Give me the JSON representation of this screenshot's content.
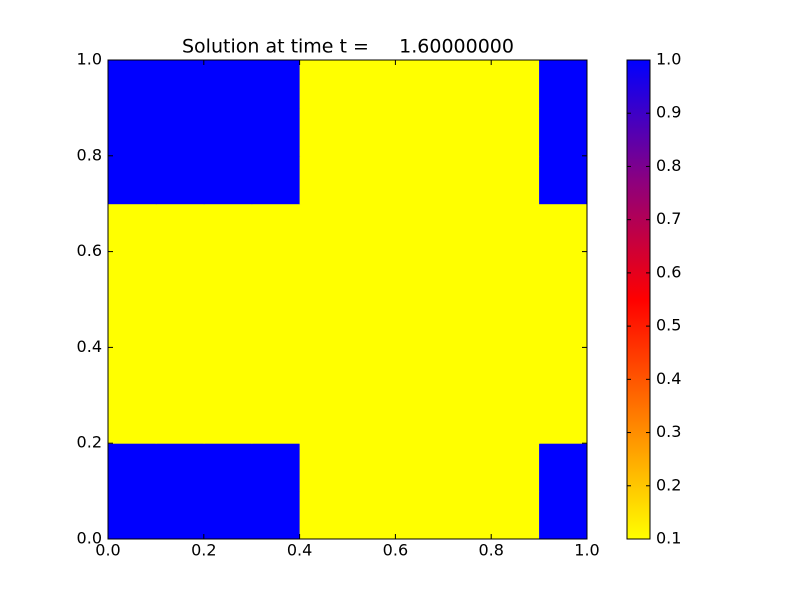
{
  "chart_data": {
    "type": "heatmap",
    "title": "Solution at time t =     1.60000000",
    "xbins": [
      0,
      0.1,
      0.2,
      0.3,
      0.4,
      0.5,
      0.6,
      0.7,
      0.8,
      0.9,
      1
    ],
    "ybins": [
      0,
      0.1,
      0.2,
      0.3,
      0.4,
      0.5,
      0.6,
      0.7,
      0.8,
      0.9,
      1
    ],
    "z": [
      [
        1,
        1,
        1,
        1,
        0.1,
        0.1,
        0.1,
        0.1,
        0.1,
        1
      ],
      [
        1,
        1,
        1,
        1,
        0.1,
        0.1,
        0.1,
        0.1,
        0.1,
        1
      ],
      [
        0.1,
        0.1,
        0.1,
        0.1,
        0.1,
        0.1,
        0.1,
        0.1,
        0.1,
        0.1
      ],
      [
        0.1,
        0.1,
        0.1,
        0.1,
        0.1,
        0.1,
        0.1,
        0.1,
        0.1,
        0.1
      ],
      [
        0.1,
        0.1,
        0.1,
        0.1,
        0.1,
        0.1,
        0.1,
        0.1,
        0.1,
        0.1
      ],
      [
        0.1,
        0.1,
        0.1,
        0.1,
        0.1,
        0.1,
        0.1,
        0.1,
        0.1,
        0.1
      ],
      [
        0.1,
        0.1,
        0.1,
        0.1,
        0.1,
        0.1,
        0.1,
        0.1,
        0.1,
        0.1
      ],
      [
        1,
        1,
        1,
        1,
        0.1,
        0.1,
        0.1,
        0.1,
        0.1,
        1
      ],
      [
        1,
        1,
        1,
        1,
        0.1,
        0.1,
        0.1,
        0.1,
        0.1,
        1
      ],
      [
        1,
        1,
        1,
        1,
        0.1,
        0.1,
        0.1,
        0.1,
        0.1,
        1
      ]
    ],
    "xlim": [
      0,
      1
    ],
    "ylim": [
      0,
      1
    ],
    "xticks": [
      {
        "value": 0,
        "label": "0.0"
      },
      0.2,
      0.4,
      0.6,
      0.8,
      {
        "value": 1,
        "label": "1.0"
      }
    ],
    "yticks": [
      {
        "value": 0,
        "label": "0.0"
      },
      0.2,
      0.4,
      0.6,
      0.8,
      {
        "value": 1,
        "label": "1.0"
      }
    ],
    "clim": [
      0.1,
      1
    ],
    "cticks": [
      0.1,
      0.2,
      0.3,
      0.4,
      0.5,
      0.6,
      0.7,
      0.8,
      0.9,
      {
        "value": 1,
        "label": "1.0"
      }
    ],
    "colormap": [
      "#ffff00",
      "#ff8000",
      "#ff0000",
      "#8b0080",
      "#0000ff"
    ]
  }
}
